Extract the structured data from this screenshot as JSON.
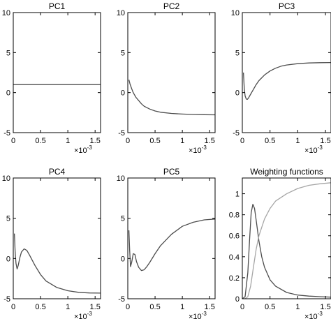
{
  "chart_data": [
    {
      "type": "line",
      "title": "PC1",
      "xlim": [
        0,
        0.0016
      ],
      "ylim": [
        -5,
        10
      ],
      "xticks": [
        {
          "v": 0,
          "label": "0"
        },
        {
          "v": 0.0005,
          "label": "0.5"
        },
        {
          "v": 0.001,
          "label": "1"
        },
        {
          "v": 0.0015,
          "label": "1.5"
        }
      ],
      "yticks": [
        {
          "v": -5,
          "label": "-5"
        },
        {
          "v": 0,
          "label": "0"
        },
        {
          "v": 5,
          "label": "5"
        },
        {
          "v": 10,
          "label": "10"
        }
      ],
      "x_multiplier": {
        "base": "×10",
        "exp": "-3"
      },
      "series": [
        {
          "color": "#4d4d4d",
          "x": [
            0,
            0.0016
          ],
          "y": [
            1,
            1
          ]
        }
      ]
    },
    {
      "type": "line",
      "title": "PC2",
      "xlim": [
        0,
        0.0016
      ],
      "ylim": [
        -5,
        10
      ],
      "xticks": [
        {
          "v": 0,
          "label": "0"
        },
        {
          "v": 0.0005,
          "label": "0.5"
        },
        {
          "v": 0.001,
          "label": "1"
        },
        {
          "v": 0.0015,
          "label": "1.5"
        }
      ],
      "yticks": [
        {
          "v": -5,
          "label": "-5"
        },
        {
          "v": 0,
          "label": "0"
        },
        {
          "v": 5,
          "label": "5"
        },
        {
          "v": 10,
          "label": "10"
        }
      ],
      "x_multiplier": {
        "base": "×10",
        "exp": "-3"
      },
      "series": [
        {
          "color": "#4d4d4d",
          "x": [
            2e-05,
            4e-05,
            7e-05,
            0.0001,
            0.00015,
            0.0002,
            0.00025,
            0.0003,
            0.0004,
            0.0005,
            0.0006,
            0.0008,
            0.001,
            0.0012,
            0.0014,
            0.0016
          ],
          "y": [
            1.6,
            1.1,
            0.5,
            0.0,
            -0.6,
            -1.0,
            -1.4,
            -1.7,
            -2.05,
            -2.3,
            -2.45,
            -2.6,
            -2.68,
            -2.73,
            -2.76,
            -2.78
          ]
        }
      ]
    },
    {
      "type": "line",
      "title": "PC3",
      "xlim": [
        0,
        0.0016
      ],
      "ylim": [
        -5,
        10
      ],
      "xticks": [
        {
          "v": 0,
          "label": "0"
        },
        {
          "v": 0.0005,
          "label": "0.5"
        },
        {
          "v": 0.001,
          "label": "1"
        },
        {
          "v": 0.0015,
          "label": "1.5"
        }
      ],
      "yticks": [
        {
          "v": -5,
          "label": "-5"
        },
        {
          "v": 0,
          "label": "0"
        },
        {
          "v": 5,
          "label": "5"
        },
        {
          "v": 10,
          "label": "10"
        }
      ],
      "x_multiplier": {
        "base": "×10",
        "exp": "-3"
      },
      "series": [
        {
          "color": "#4d4d4d",
          "x": [
            2e-05,
            3.5e-05,
            5e-05,
            7e-05,
            9e-05,
            0.00011,
            0.00015,
            0.0002,
            0.00025,
            0.0003,
            0.0004,
            0.0005,
            0.0006,
            0.0007,
            0.0008,
            0.001,
            0.0012,
            0.0014,
            0.0016
          ],
          "y": [
            2.5,
            0.5,
            -0.4,
            -0.8,
            -0.85,
            -0.7,
            -0.2,
            0.4,
            1.0,
            1.5,
            2.2,
            2.7,
            3.05,
            3.3,
            3.45,
            3.62,
            3.7,
            3.74,
            3.76
          ]
        }
      ]
    },
    {
      "type": "line",
      "title": "PC4",
      "xlim": [
        0,
        0.0016
      ],
      "ylim": [
        -5,
        10
      ],
      "xticks": [
        {
          "v": 0,
          "label": "0"
        },
        {
          "v": 0.0005,
          "label": "0.5"
        },
        {
          "v": 0.001,
          "label": "1"
        },
        {
          "v": 0.0015,
          "label": "1.5"
        }
      ],
      "yticks": [
        {
          "v": -5,
          "label": "-5"
        },
        {
          "v": 0,
          "label": "0"
        },
        {
          "v": 5,
          "label": "5"
        },
        {
          "v": 10,
          "label": "10"
        }
      ],
      "x_multiplier": {
        "base": "×10",
        "exp": "-3"
      },
      "series": [
        {
          "color": "#4d4d4d",
          "x": [
            2e-05,
            3.5e-05,
            5e-05,
            7e-05,
            9e-05,
            0.00012,
            0.00015,
            0.0002,
            0.00025,
            0.0003,
            0.0004,
            0.0005,
            0.0006,
            0.0008,
            0.001,
            0.0012,
            0.0014,
            0.0016
          ],
          "y": [
            3.1,
            0.8,
            -0.6,
            -1.3,
            -0.9,
            0.1,
            0.8,
            1.2,
            1.0,
            0.4,
            -0.9,
            -2.0,
            -2.8,
            -3.6,
            -4.0,
            -4.2,
            -4.28,
            -4.3
          ]
        }
      ]
    },
    {
      "type": "line",
      "title": "PC5",
      "xlim": [
        0,
        0.0016
      ],
      "ylim": [
        -5,
        10
      ],
      "xticks": [
        {
          "v": 0,
          "label": "0"
        },
        {
          "v": 0.0005,
          "label": "0.5"
        },
        {
          "v": 0.001,
          "label": "1"
        },
        {
          "v": 0.0015,
          "label": "1.5"
        }
      ],
      "yticks": [
        {
          "v": -5,
          "label": "-5"
        },
        {
          "v": 0,
          "label": "0"
        },
        {
          "v": 5,
          "label": "5"
        },
        {
          "v": 10,
          "label": "10"
        }
      ],
      "x_multiplier": {
        "base": "×10",
        "exp": "-3"
      },
      "series": [
        {
          "color": "#4d4d4d",
          "x": [
            2e-05,
            3.5e-05,
            5e-05,
            7e-05,
            0.0001,
            0.00013,
            0.00016,
            0.0002,
            0.00025,
            0.0003,
            0.00035,
            0.0004,
            0.0005,
            0.0006,
            0.0008,
            0.001,
            0.0012,
            0.0014,
            0.0016
          ],
          "y": [
            3.5,
            1.0,
            -1.0,
            -0.5,
            0.6,
            0.5,
            -0.4,
            -1.1,
            -1.5,
            -1.4,
            -1.0,
            -0.5,
            0.6,
            1.6,
            3.0,
            4.0,
            4.5,
            4.8,
            4.9
          ]
        }
      ]
    },
    {
      "type": "line",
      "title": "Weighting functions",
      "xlim": [
        0,
        0.0016
      ],
      "ylim": [
        0,
        1.15
      ],
      "xticks": [
        {
          "v": 0,
          "label": "0"
        },
        {
          "v": 0.0005,
          "label": "0.5"
        },
        {
          "v": 0.001,
          "label": "1"
        },
        {
          "v": 0.0015,
          "label": "1.5"
        }
      ],
      "yticks": [
        {
          "v": 0,
          "label": "0"
        },
        {
          "v": 0.2,
          "label": "0.2"
        },
        {
          "v": 0.4,
          "label": "0.4"
        },
        {
          "v": 0.6,
          "label": "0.6"
        },
        {
          "v": 0.8,
          "label": "0.8"
        },
        {
          "v": 1,
          "label": "1"
        }
      ],
      "x_multiplier": {
        "base": "×10",
        "exp": "-3"
      },
      "series": [
        {
          "color": "#4d4d4d",
          "x": [
            0,
            5e-05,
            0.0001,
            0.00013,
            0.00016,
            0.00019,
            0.00022,
            0.00025,
            0.0003,
            0.00035,
            0.0004,
            0.0005,
            0.0006,
            0.0008,
            0.001,
            0.0012,
            0.0014,
            0.0016
          ],
          "y": [
            0.0,
            0.02,
            0.25,
            0.55,
            0.82,
            0.9,
            0.86,
            0.75,
            0.55,
            0.4,
            0.3,
            0.18,
            0.12,
            0.06,
            0.035,
            0.025,
            0.02,
            0.015
          ]
        },
        {
          "color": "#a6a6a6",
          "x": [
            0,
            5e-05,
            0.0001,
            0.00015,
            0.0002,
            0.00025,
            0.0003,
            0.0004,
            0.0005,
            0.0006,
            0.0008,
            0.001,
            0.0012,
            0.0014,
            0.0016
          ],
          "y": [
            0.0,
            0.0,
            0.02,
            0.12,
            0.3,
            0.47,
            0.6,
            0.76,
            0.86,
            0.93,
            1.0,
            1.05,
            1.08,
            1.095,
            1.105
          ]
        }
      ]
    }
  ]
}
